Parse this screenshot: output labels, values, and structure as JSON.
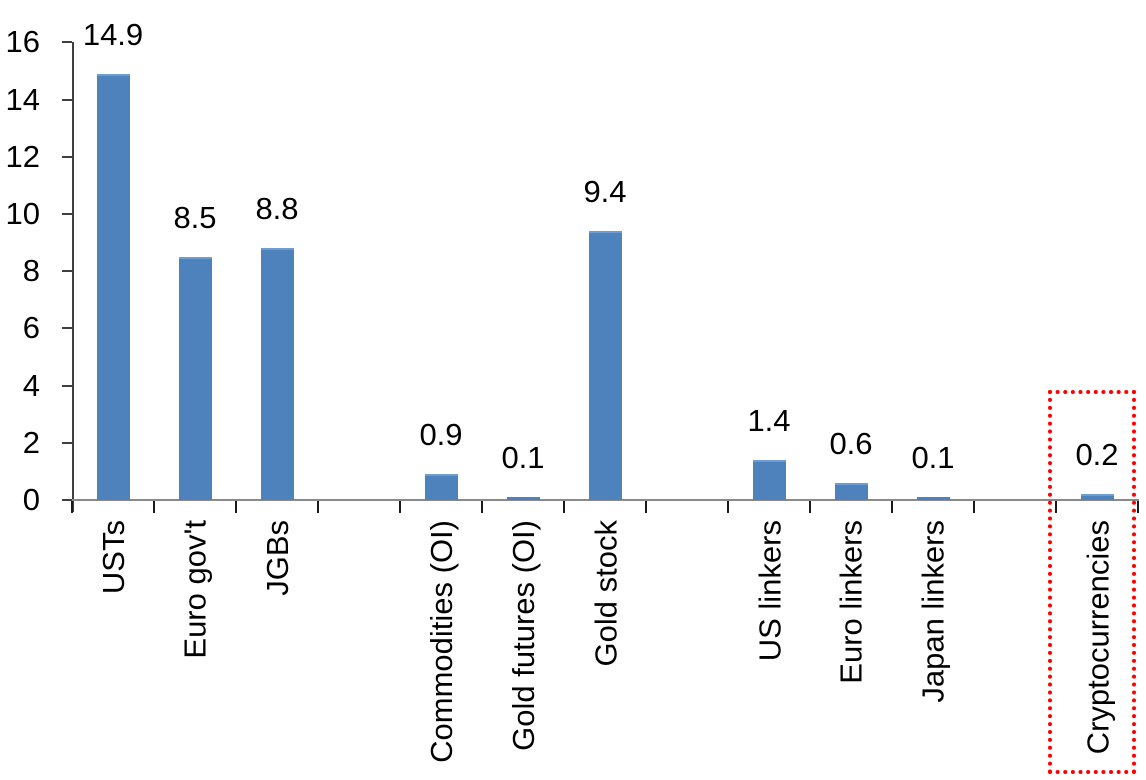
{
  "chart_data": {
    "type": "bar",
    "title": "",
    "xlabel": "",
    "ylabel": "",
    "categories": [
      "USTs",
      "Euro gov't",
      "JGBs",
      "",
      "Commodities (OI)",
      "Gold futures (OI)",
      "Gold stock",
      "",
      "US linkers",
      "Euro linkers",
      "Japan linkers",
      "",
      "Cryptocurrencies"
    ],
    "values": [
      14.9,
      8.5,
      8.8,
      null,
      0.9,
      0.1,
      9.4,
      null,
      1.4,
      0.6,
      0.1,
      null,
      0.2
    ],
    "data_labels": [
      "14.9",
      "8.5",
      "8.8",
      null,
      "0.9",
      "0.1",
      "9.4",
      null,
      "1.4",
      "0.6",
      "0.1",
      null,
      "0.2"
    ],
    "ylim": [
      0,
      16
    ],
    "ytick_step": 2,
    "ytick_labels": [
      "0",
      "2",
      "4",
      "6",
      "8",
      "10",
      "12",
      "14",
      "16"
    ],
    "grid": false,
    "legend": false,
    "bar_color": "#4d82bc",
    "bar_top_highlight_color": "#6f9dd1",
    "x_axis_color": "#8a8a8a",
    "y_axis_color": "#3f3f3f",
    "tick_color": "#1a1a1a",
    "text_color": "#000000",
    "annotation": {
      "type": "red-dotted-box",
      "target_category": "Cryptocurrencies",
      "color": "#ff0000"
    }
  }
}
